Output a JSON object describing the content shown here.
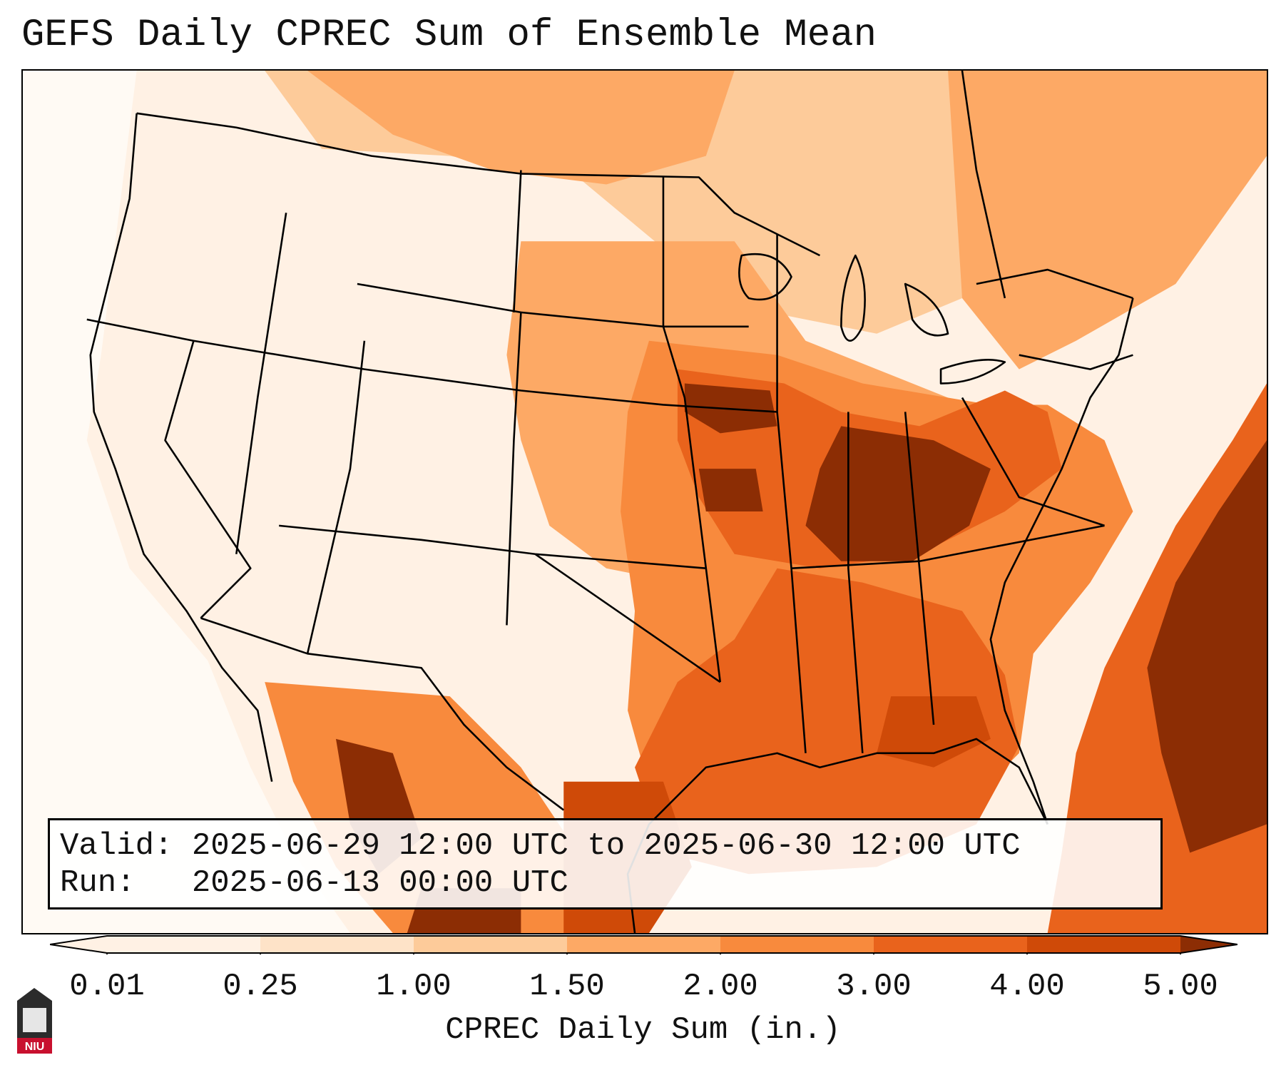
{
  "title": "GEFS Daily CPREC Sum of Ensemble Mean",
  "info": {
    "valid_line": "Valid: 2025-06-29 12:00 UTC to 2025-06-30 12:00 UTC",
    "run_line": "Run:   2025-06-13 00:00 UTC"
  },
  "colorbar": {
    "label": "CPREC Daily Sum (in.)",
    "ticks": [
      "0.01",
      "0.25",
      "1.00",
      "1.50",
      "2.00",
      "3.00",
      "4.00",
      "5.00"
    ],
    "colors": [
      "#fff1e4",
      "#fee3c8",
      "#fdcb9a",
      "#fda965",
      "#f88a3d",
      "#e9631c",
      "#cf4a08",
      "#8c2d04"
    ]
  },
  "logo": {
    "text": "NIU"
  },
  "map": {
    "region": "CONUS",
    "ocean_color": "#ffffff"
  }
}
